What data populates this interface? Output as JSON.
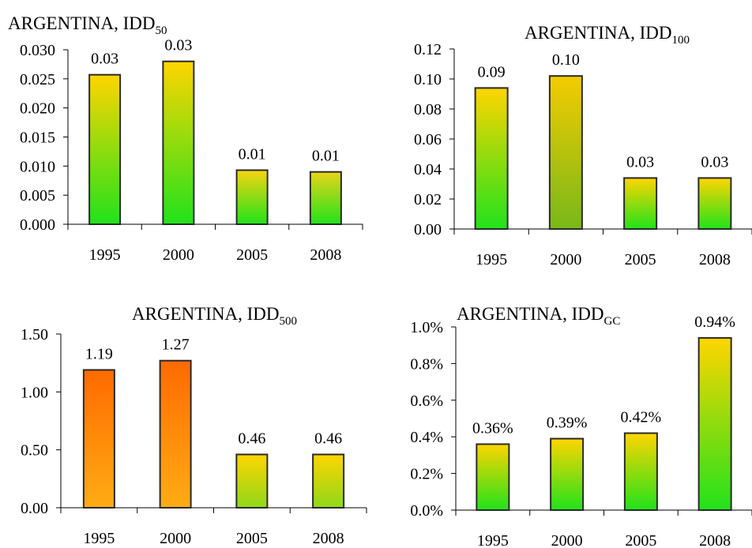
{
  "chart_data": [
    {
      "type": "bar",
      "title": "ARGENTINA, IDD",
      "title_subscript": "50",
      "categories": [
        "1995",
        "2000",
        "2005",
        "2008"
      ],
      "values": [
        0.0257,
        0.028,
        0.0093,
        0.009
      ],
      "data_labels": [
        "0.03",
        "0.03",
        "0.01",
        "0.01"
      ],
      "ylim": [
        0,
        0.03
      ],
      "yticks": [
        "0.000",
        "0.005",
        "0.010",
        "0.015",
        "0.020",
        "0.025",
        "0.030"
      ],
      "bar_colors": [
        [
          "#21e21b",
          "#ffd500"
        ],
        [
          "#21e21b",
          "#ffd500"
        ],
        [
          "#21e21b",
          "#f6d510"
        ],
        [
          "#21e21b",
          "#e9d518"
        ]
      ]
    },
    {
      "type": "bar",
      "title": "ARGENTINA, IDD",
      "title_subscript": "100",
      "categories": [
        "1995",
        "2000",
        "2005",
        "2008"
      ],
      "values": [
        0.094,
        0.102,
        0.034,
        0.034
      ],
      "data_labels": [
        "0.09",
        "0.10",
        "0.03",
        "0.03"
      ],
      "ylim": [
        0,
        0.12
      ],
      "yticks": [
        "0.00",
        "0.02",
        "0.04",
        "0.06",
        "0.08",
        "0.10",
        "0.12"
      ],
      "bar_colors": [
        [
          "#21e21b",
          "#ffd500"
        ],
        [
          "#78b81a",
          "#f4cc00"
        ],
        [
          "#21e21b",
          "#ffd500"
        ],
        [
          "#21e21b",
          "#ffd500"
        ]
      ]
    },
    {
      "type": "bar",
      "title": "ARGENTINA, IDD",
      "title_subscript": "500",
      "categories": [
        "1995",
        "2000",
        "2005",
        "2008"
      ],
      "values": [
        1.19,
        1.27,
        0.46,
        0.46
      ],
      "data_labels": [
        "1.19",
        "1.27",
        "0.46",
        "0.46"
      ],
      "ylim": [
        0,
        1.5
      ],
      "yticks": [
        "0.00",
        "0.50",
        "1.00",
        "1.50"
      ],
      "bar_colors": [
        [
          "#ffac14",
          "#ff6a00"
        ],
        [
          "#ffac14",
          "#ff6a00"
        ],
        [
          "#8fd81a",
          "#ffd500"
        ],
        [
          "#8fd81a",
          "#ffd500"
        ]
      ]
    },
    {
      "type": "bar",
      "title": "ARGENTINA, IDD",
      "title_subscript": "GC",
      "categories": [
        "1995",
        "2000",
        "2005",
        "2008"
      ],
      "values": [
        0.36,
        0.39,
        0.42,
        0.94
      ],
      "data_labels": [
        "0.36%",
        "0.39%",
        "0.42%",
        "0.94%"
      ],
      "ylim": [
        0,
        1.0
      ],
      "yticks": [
        "0.0%",
        "0.2%",
        "0.4%",
        "0.6%",
        "0.8%",
        "1.0%"
      ],
      "bar_colors": [
        [
          "#21e21b",
          "#ffd500"
        ],
        [
          "#21e21b",
          "#ffd500"
        ],
        [
          "#21e21b",
          "#ffd500"
        ],
        [
          "#21e21b",
          "#ffd500"
        ]
      ]
    }
  ]
}
